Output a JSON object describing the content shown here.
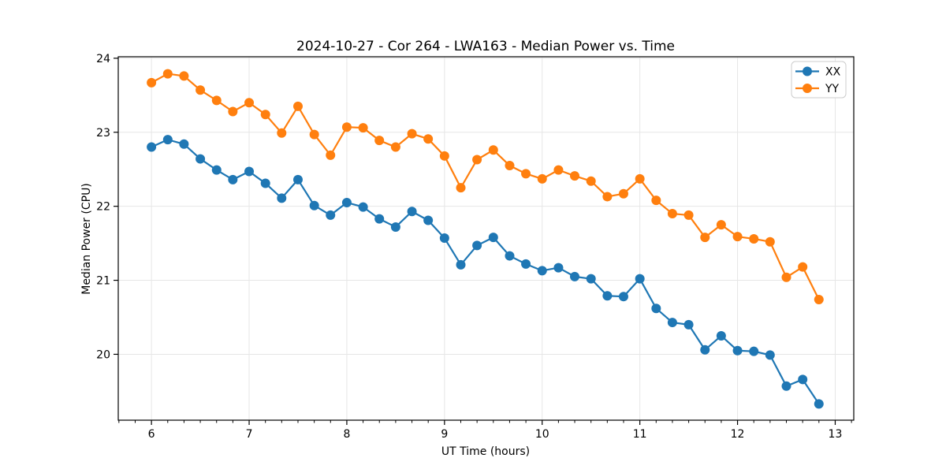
{
  "chart_data": {
    "type": "line",
    "title": "2024-10-27 - Cor 264 - LWA163 - Median Power vs. Time",
    "xlabel": "UT Time (hours)",
    "ylabel": "Median Power (CPU)",
    "x": [
      6.0,
      6.167,
      6.333,
      6.5,
      6.667,
      6.833,
      7.0,
      7.167,
      7.333,
      7.5,
      7.667,
      7.833,
      8.0,
      8.167,
      8.333,
      8.5,
      8.667,
      8.833,
      9.0,
      9.167,
      9.333,
      9.5,
      9.667,
      9.833,
      10.0,
      10.167,
      10.333,
      10.5,
      10.667,
      10.833,
      11.0,
      11.167,
      11.333,
      11.5,
      11.667,
      11.833,
      12.0,
      12.167,
      12.333,
      12.5,
      12.667,
      12.833
    ],
    "series": [
      {
        "name": "XX",
        "color": "#1f77b4",
        "values": [
          22.8,
          22.9,
          22.84,
          22.64,
          22.49,
          22.36,
          22.47,
          22.31,
          22.11,
          22.36,
          22.01,
          21.88,
          22.05,
          21.99,
          21.83,
          21.72,
          21.93,
          21.81,
          21.57,
          21.21,
          21.47,
          21.58,
          21.33,
          21.22,
          21.13,
          21.17,
          21.05,
          21.02,
          20.79,
          20.78,
          21.02,
          20.62,
          20.43,
          20.4,
          20.06,
          20.25,
          20.05,
          20.04,
          19.99,
          19.57,
          19.66,
          19.33
        ]
      },
      {
        "name": "YY",
        "color": "#ff7f0e",
        "values": [
          23.67,
          23.79,
          23.76,
          23.57,
          23.43,
          23.28,
          23.4,
          23.24,
          22.99,
          23.35,
          22.97,
          22.69,
          23.07,
          23.06,
          22.89,
          22.8,
          22.98,
          22.91,
          22.68,
          22.25,
          22.63,
          22.76,
          22.55,
          22.44,
          22.37,
          22.49,
          22.41,
          22.34,
          22.13,
          22.17,
          22.37,
          22.08,
          21.9,
          21.88,
          21.58,
          21.75,
          21.59,
          21.56,
          21.52,
          21.04,
          21.18,
          20.74
        ]
      }
    ],
    "xlim": [
      5.66,
      13.19
    ],
    "ylim": [
      19.11,
      24.02
    ],
    "x_ticks": [
      6,
      7,
      8,
      9,
      10,
      11,
      12,
      13
    ],
    "y_ticks": [
      20,
      21,
      22,
      23,
      24
    ],
    "x_minor_ticks_per_major": 6,
    "grid": true,
    "grid_color": "#e6e6e6",
    "legend_position": "upper right",
    "marker": "circle"
  }
}
